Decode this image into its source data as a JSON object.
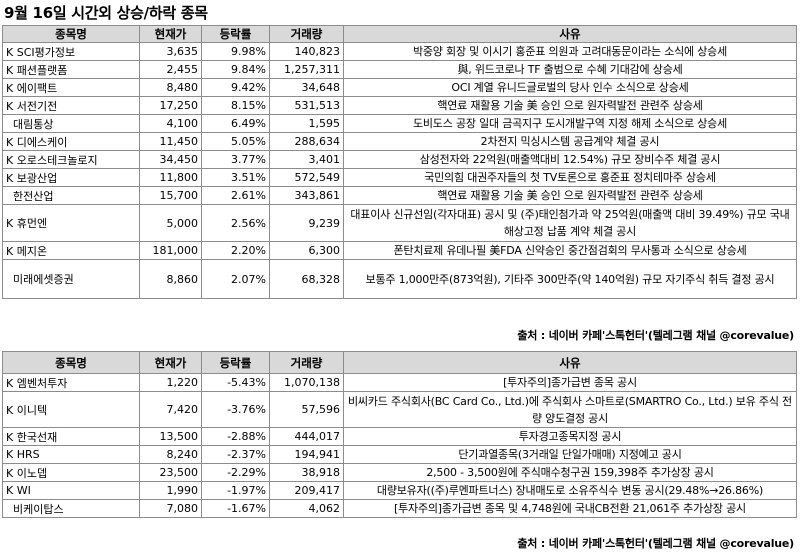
{
  "title": "9월 16일  시간외 상승/하락 종목",
  "headers": {
    "name": "종목명",
    "price": "현재가",
    "change": "등락률",
    "volume": "거래량",
    "reason": "사유"
  },
  "gainers": [
    {
      "name": "K SCI평가정보",
      "price": "3,635",
      "change": "9.98%",
      "volume": "140,823",
      "reason": "박중양 회장 및 이시기 홍준표 의원과 고려대동문이라는 소식에 상승세"
    },
    {
      "name": "K 패션플랫폼",
      "price": "2,455",
      "change": "9.84%",
      "volume": "1,257,311",
      "reason": "與, 위드코로나 TF 출범으로 수혜 기대감에 상승세"
    },
    {
      "name": "K 에이팩트",
      "price": "8,480",
      "change": "9.42%",
      "volume": "34,648",
      "reason": "OCI 계열 유니드글로벌의 당사 인수 소식으로 상승세"
    },
    {
      "name": "K 서전기전",
      "price": "17,250",
      "change": "8.15%",
      "volume": "531,513",
      "reason": "핵연료 재활용 기술 美 승인 으로 원자력발전 관련주 상승세"
    },
    {
      "name": "  대림통상",
      "price": "4,100",
      "change": "6.49%",
      "volume": "1,595",
      "reason": "도비도스 공장 일대 금곡지구 도시개발구역 지정 해제 소식으로 상승세"
    },
    {
      "name": "K 디에스케이",
      "price": "11,450",
      "change": "5.05%",
      "volume": "288,634",
      "reason": "2차전지 믹싱시스템 공급계약 체결 공시"
    },
    {
      "name": "K 오로스테크놀로지",
      "price": "34,450",
      "change": "3.77%",
      "volume": "3,401",
      "reason": "삼성전자와 22억원(매출액대비 12.54%) 규모 장비수주 체결 공시"
    },
    {
      "name": "K 보광산업",
      "price": "11,800",
      "change": "3.51%",
      "volume": "572,549",
      "reason": "국민의힘 대권주자들의 첫 TV토론으로 홍준표 정치테마주 상승세"
    },
    {
      "name": "  한전산업",
      "price": "15,700",
      "change": "2.61%",
      "volume": "343,861",
      "reason": "핵연료 재활용 기술 美 승인 으로 원자력발전 관련주 상승세"
    },
    {
      "name": "K 휴먼엔",
      "price": "5,000",
      "change": "2.56%",
      "volume": "9,239",
      "reason": "대표이사 신규선임(각자대표) 공시 및 (주)태인첨가과 약 25억원(매출액 대비 39.49%) 규모 국내 해상고정 납품 계약 체결 공시"
    },
    {
      "name": "K 메지온",
      "price": "181,000",
      "change": "2.20%",
      "volume": "6,300",
      "reason": "폰탄치료제 유데나필 美FDA 신약승인 중간점검회의 무사통과 소식으로 상승세"
    },
    {
      "name": "  미래에셋증권",
      "price": "8,860",
      "change": "2.07%",
      "volume": "68,328",
      "reason": "보통주 1,000만주(873억원), 기타주 300만주(약 140억원) 규모 자기주식 취득 결정 공시"
    }
  ],
  "losers": [
    {
      "name": "K 엠벤처투자",
      "price": "1,220",
      "change": "-5.43%",
      "volume": "1,070,138",
      "reason": "[투자주의]종가급변 종목 공시"
    },
    {
      "name": "K 이니텍",
      "price": "7,420",
      "change": "-3.76%",
      "volume": "57,596",
      "reason": "비씨카드 주식회사(BC Card Co., Ltd.)에 주식회사 스마트로(SMARTRO Co., Ltd.) 보유 주식 전량 양도결정 공시"
    },
    {
      "name": "K 한국선재",
      "price": "13,500",
      "change": "-2.88%",
      "volume": "444,017",
      "reason": "투자경고종목지정 공시"
    },
    {
      "name": "K HRS",
      "price": "8,240",
      "change": "-2.37%",
      "volume": "194,941",
      "reason": "단기과열종목(3거래일 단일가매매) 지정예고 공시"
    },
    {
      "name": "K 이노뎁",
      "price": "23,500",
      "change": "-2.29%",
      "volume": "38,918",
      "reason": "2,500 - 3,500원에 주식매수청구권 159,398주 추가상장 공시"
    },
    {
      "name": "K WI",
      "price": "1,990",
      "change": "-1.97%",
      "volume": "209,417",
      "reason": "대량보유자((주)루멘파트너스) 장내매도로 소유주식수 변동 공시(29.48%→26.86%)"
    },
    {
      "name": "  비케이탑스",
      "price": "7,080",
      "change": "-1.67%",
      "volume": "4,062",
      "reason": "[투자주의]종가급변 종목 및 4,748원에 국내CB전환 21,061주 추가상장 공시"
    }
  ],
  "source": "출처 : 네이버 카페'스톡헌터'(텔레그램 채널 @corevalue)"
}
